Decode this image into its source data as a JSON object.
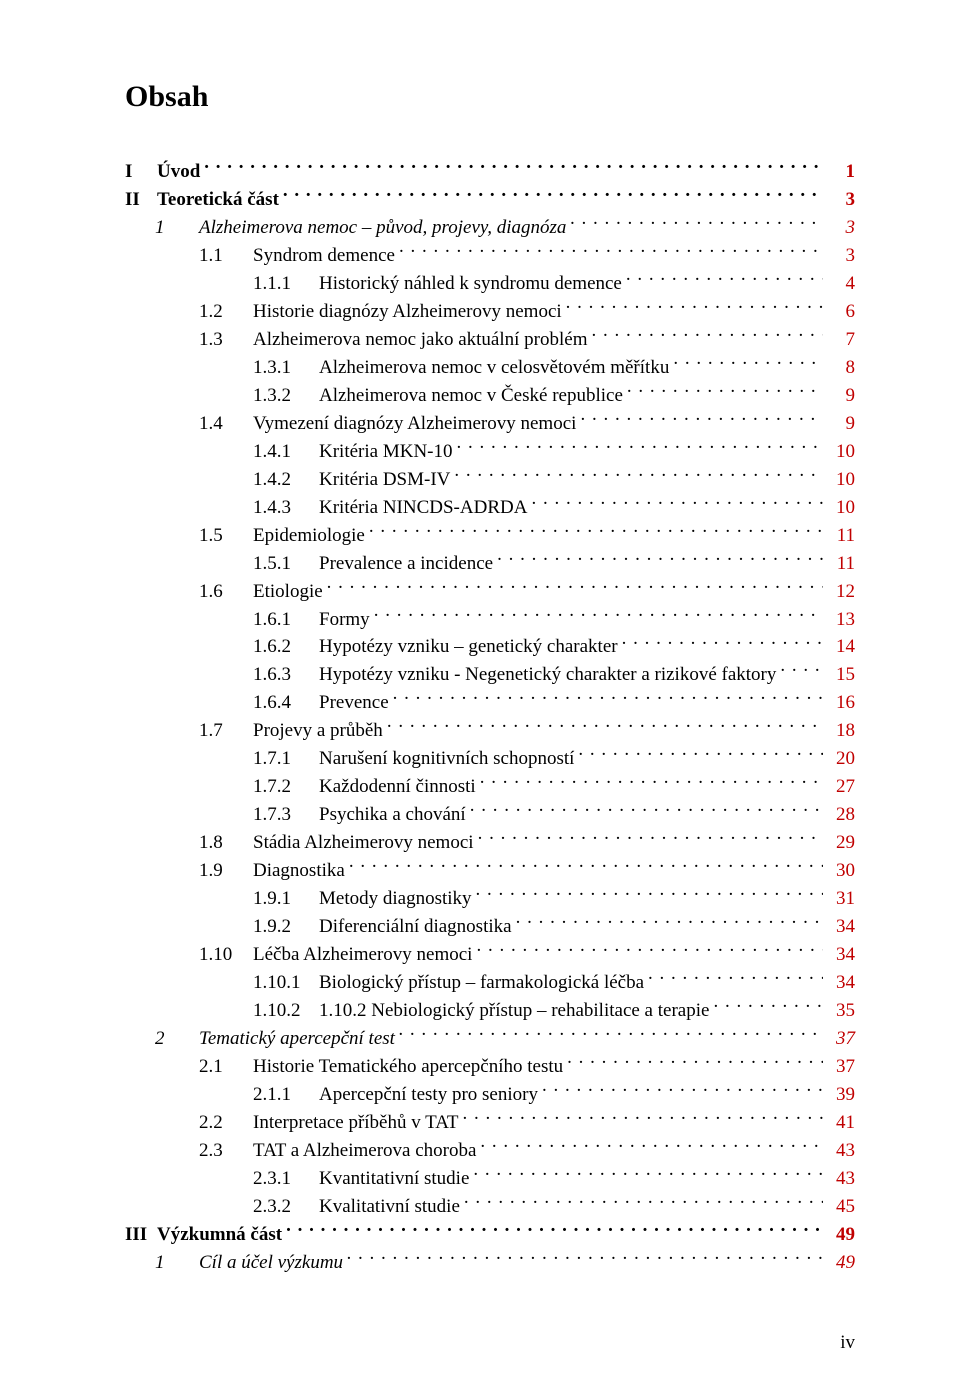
{
  "title": "Obsah",
  "footer": "iv",
  "colors": {
    "link": "#c00000",
    "text": "#000000",
    "bg": "#ffffff"
  },
  "entries": [
    {
      "level": "partroman",
      "num": "I",
      "label": "Úvod",
      "page": "1",
      "bold": true,
      "italic": false,
      "page_link": true
    },
    {
      "level": "partroman",
      "num": "II",
      "label": "Teoretická část",
      "page": "3",
      "bold": true,
      "italic": false,
      "page_link": true
    },
    {
      "level": "chapter",
      "num": "1",
      "label": "Alzheimerova nemoc – původ, projevy, diagnóza",
      "page": "3",
      "bold": false,
      "italic": true,
      "page_link": true
    },
    {
      "level": "section",
      "num": "1.1",
      "label": "Syndrom demence",
      "page": "3",
      "bold": false,
      "italic": false,
      "page_link": true
    },
    {
      "level": "subsec",
      "num": "1.1.1",
      "label": "Historický náhled k syndromu demence",
      "page": "4",
      "bold": false,
      "italic": false,
      "page_link": true
    },
    {
      "level": "section",
      "num": "1.2",
      "label": "Historie diagnózy Alzheimerovy nemoci",
      "page": "6",
      "bold": false,
      "italic": false,
      "page_link": true
    },
    {
      "level": "section",
      "num": "1.3",
      "label": "Alzheimerova nemoc jako aktuální problém",
      "page": "7",
      "bold": false,
      "italic": false,
      "page_link": true
    },
    {
      "level": "subsec",
      "num": "1.3.1",
      "label": "Alzheimerova nemoc v celosvětovém měřítku",
      "page": "8",
      "bold": false,
      "italic": false,
      "page_link": true
    },
    {
      "level": "subsec",
      "num": "1.3.2",
      "label": "Alzheimerova nemoc v České republice",
      "page": "9",
      "bold": false,
      "italic": false,
      "page_link": true
    },
    {
      "level": "section",
      "num": "1.4",
      "label": "Vymezení diagnózy Alzheimerovy nemoci",
      "page": "9",
      "bold": false,
      "italic": false,
      "page_link": true
    },
    {
      "level": "subsec",
      "num": "1.4.1",
      "label": "Kritéria MKN-10",
      "page": "10",
      "bold": false,
      "italic": false,
      "page_link": true
    },
    {
      "level": "subsec",
      "num": "1.4.2",
      "label": "Kritéria DSM-IV",
      "page": "10",
      "bold": false,
      "italic": false,
      "page_link": true
    },
    {
      "level": "subsec",
      "num": "1.4.3",
      "label": "Kritéria NINCDS-ADRDA",
      "page": "10",
      "bold": false,
      "italic": false,
      "page_link": true
    },
    {
      "level": "section",
      "num": "1.5",
      "label": "Epidemiologie",
      "page": "11",
      "bold": false,
      "italic": false,
      "page_link": true
    },
    {
      "level": "subsec",
      "num": "1.5.1",
      "label": "Prevalence a incidence",
      "page": "11",
      "bold": false,
      "italic": false,
      "page_link": true
    },
    {
      "level": "section",
      "num": "1.6",
      "label": "Etiologie",
      "page": "12",
      "bold": false,
      "italic": false,
      "page_link": true
    },
    {
      "level": "subsec",
      "num": "1.6.1",
      "label": "Formy",
      "page": "13",
      "bold": false,
      "italic": false,
      "page_link": true
    },
    {
      "level": "subsec",
      "num": "1.6.2",
      "label": "Hypotézy vzniku – genetický charakter",
      "page": "14",
      "bold": false,
      "italic": false,
      "page_link": true
    },
    {
      "level": "subsec",
      "num": "1.6.3",
      "label": "Hypotézy vzniku - Negenetický charakter a rizikové faktory",
      "page": "15",
      "bold": false,
      "italic": false,
      "page_link": true
    },
    {
      "level": "subsec",
      "num": "1.6.4",
      "label": "Prevence",
      "page": "16",
      "bold": false,
      "italic": false,
      "page_link": true
    },
    {
      "level": "section",
      "num": "1.7",
      "label": "Projevy a průběh",
      "page": "18",
      "bold": false,
      "italic": false,
      "page_link": true
    },
    {
      "level": "subsec",
      "num": "1.7.1",
      "label": "Narušení kognitivních schopností",
      "page": "20",
      "bold": false,
      "italic": false,
      "page_link": true
    },
    {
      "level": "subsec",
      "num": "1.7.2",
      "label": "Každodenní činnosti",
      "page": "27",
      "bold": false,
      "italic": false,
      "page_link": true
    },
    {
      "level": "subsec",
      "num": "1.7.3",
      "label": "Psychika a chování",
      "page": "28",
      "bold": false,
      "italic": false,
      "page_link": true
    },
    {
      "level": "section",
      "num": "1.8",
      "label": "Stádia Alzheimerovy nemoci",
      "page": "29",
      "bold": false,
      "italic": false,
      "page_link": true
    },
    {
      "level": "section",
      "num": "1.9",
      "label": "Diagnostika",
      "page": "30",
      "bold": false,
      "italic": false,
      "page_link": true
    },
    {
      "level": "subsec",
      "num": "1.9.1",
      "label": "Metody diagnostiky",
      "page": "31",
      "bold": false,
      "italic": false,
      "page_link": true
    },
    {
      "level": "subsec",
      "num": "1.9.2",
      "label": "Diferenciální diagnostika",
      "page": "34",
      "bold": false,
      "italic": false,
      "page_link": true
    },
    {
      "level": "section",
      "num": "1.10",
      "label": "Léčba Alzheimerovy nemoci",
      "page": "34",
      "bold": false,
      "italic": false,
      "page_link": true
    },
    {
      "level": "subsec",
      "num": "1.10.1",
      "label": "Biologický přístup – farmakologická léčba",
      "page": "34",
      "bold": false,
      "italic": false,
      "page_link": true
    },
    {
      "level": "subsec",
      "num": "1.10.2",
      "label": "1.10.2 Nebiologický přístup – rehabilitace a terapie",
      "page": "35",
      "bold": false,
      "italic": false,
      "page_link": true
    },
    {
      "level": "chapter",
      "num": "2",
      "label": "Tematický apercepční test",
      "page": "37",
      "bold": false,
      "italic": true,
      "page_link": true
    },
    {
      "level": "section",
      "num": "2.1",
      "label": "Historie Tematického apercepčního testu",
      "page": "37",
      "bold": false,
      "italic": false,
      "page_link": true
    },
    {
      "level": "subsec",
      "num": "2.1.1",
      "label": "Apercepční testy pro seniory",
      "page": "39",
      "bold": false,
      "italic": false,
      "page_link": true
    },
    {
      "level": "section",
      "num": "2.2",
      "label": "Interpretace příběhů v TAT",
      "page": "41",
      "bold": false,
      "italic": false,
      "page_link": true
    },
    {
      "level": "section",
      "num": "2.3",
      "label": "TAT a Alzheimerova choroba",
      "page": "43",
      "bold": false,
      "italic": false,
      "page_link": true
    },
    {
      "level": "subsec",
      "num": "2.3.1",
      "label": "Kvantitativní studie",
      "page": "43",
      "bold": false,
      "italic": false,
      "page_link": true
    },
    {
      "level": "subsec",
      "num": "2.3.2",
      "label": "Kvalitativní studie",
      "page": "45",
      "bold": false,
      "italic": false,
      "page_link": true
    },
    {
      "level": "partroman",
      "num": "III",
      "label": "Výzkumná část",
      "page": "49",
      "bold": true,
      "italic": false,
      "page_link": true
    },
    {
      "level": "chapter",
      "num": "1",
      "label": "Cíl a účel výzkumu",
      "page": "49",
      "bold": false,
      "italic": true,
      "page_link": true
    }
  ]
}
